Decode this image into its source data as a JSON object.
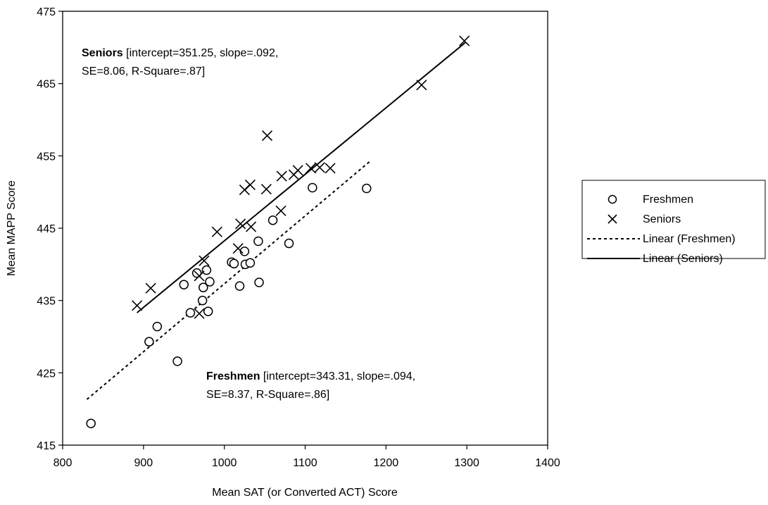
{
  "chart_data": {
    "type": "scatter",
    "xlabel": "Mean SAT (or Converted ACT) Score",
    "ylabel": "Mean MAPP Score",
    "xlim": [
      800,
      1400
    ],
    "ylim": [
      415,
      475
    ],
    "xticks": [
      800,
      900,
      1000,
      1100,
      1200,
      1300,
      1400
    ],
    "yticks": [
      415,
      425,
      435,
      445,
      455,
      465,
      475
    ],
    "xtick_labels": [
      "800",
      "900",
      "1000",
      "1100",
      "1200",
      "1300",
      "1400"
    ],
    "ytick_labels": [
      "415",
      "425",
      "435",
      "445",
      "455",
      "465",
      "475"
    ],
    "grid": false,
    "legend_position": "right",
    "series": [
      {
        "name": "Freshmen",
        "marker": "circle",
        "points": [
          [
            835,
            418.0
          ],
          [
            907,
            429.3
          ],
          [
            917,
            431.4
          ],
          [
            942,
            426.6
          ],
          [
            950,
            437.2
          ],
          [
            958,
            433.3
          ],
          [
            966,
            438.8
          ],
          [
            973,
            435.0
          ],
          [
            974,
            436.8
          ],
          [
            978,
            439.2
          ],
          [
            980,
            433.5
          ],
          [
            982,
            437.6
          ],
          [
            1009,
            440.3
          ],
          [
            1012,
            440.1
          ],
          [
            1019,
            437.0
          ],
          [
            1025,
            441.8
          ],
          [
            1026,
            440.0
          ],
          [
            1032,
            440.2
          ],
          [
            1042,
            443.2
          ],
          [
            1043,
            437.5
          ],
          [
            1060,
            446.1
          ],
          [
            1080,
            442.9
          ],
          [
            1109,
            450.6
          ],
          [
            1176,
            450.5
          ]
        ]
      },
      {
        "name": "Seniors",
        "marker": "x",
        "points": [
          [
            892,
            434.3
          ],
          [
            909,
            436.7
          ],
          [
            969,
            433.2
          ],
          [
            969,
            438.4
          ],
          [
            975,
            440.5
          ],
          [
            991,
            444.5
          ],
          [
            1017,
            442.2
          ],
          [
            1020,
            445.6
          ],
          [
            1025,
            450.3
          ],
          [
            1032,
            451.0
          ],
          [
            1033,
            445.2
          ],
          [
            1052,
            450.4
          ],
          [
            1053,
            457.8
          ],
          [
            1070,
            447.4
          ],
          [
            1071,
            452.2
          ],
          [
            1086,
            452.4
          ],
          [
            1091,
            453.0
          ],
          [
            1107,
            453.3
          ],
          [
            1118,
            453.4
          ],
          [
            1131,
            453.3
          ],
          [
            1244,
            464.8
          ],
          [
            1297,
            470.9
          ]
        ]
      }
    ],
    "trendlines": [
      {
        "name": "Linear (Freshmen)",
        "style": "dashed",
        "intercept": 343.31,
        "slope": 0.094,
        "x_range": [
          830,
          1180
        ]
      },
      {
        "name": "Linear (Seniors)",
        "style": "solid",
        "intercept": 351.25,
        "slope": 0.092,
        "x_range": [
          892,
          1298
        ]
      }
    ],
    "annotations": {
      "seniors": {
        "bold": "Seniors",
        "line1": " [intercept=351.25, slope=.092,",
        "line2": "SE=8.06, R-Square=.87]"
      },
      "freshmen": {
        "bold": "Freshmen",
        "line1": " [intercept=343.31, slope=.094,",
        "line2": "SE=8.37, R-Square=.86]"
      }
    },
    "legend": [
      "Freshmen",
      "Seniors",
      "Linear (Freshmen)",
      "Linear (Seniors)"
    ]
  }
}
